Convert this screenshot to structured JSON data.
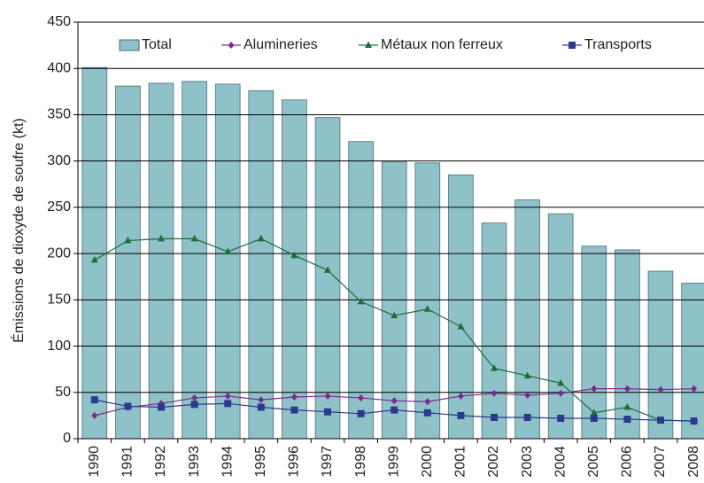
{
  "chart_data": {
    "type": "bar_line",
    "y_label": "Émissions de dioxyde de soufre (kt)",
    "categories": [
      "1990",
      "1991",
      "1992",
      "1993",
      "1994",
      "1995",
      "1996",
      "1997",
      "1998",
      "1999",
      "2000",
      "2001",
      "2002",
      "2003",
      "2004",
      "2005",
      "2006",
      "2007",
      "2008"
    ],
    "series": [
      {
        "name": "Total",
        "type": "bar",
        "color": "#8fc1c8",
        "values": [
          401,
          381,
          384,
          386,
          383,
          376,
          366,
          347,
          321,
          299,
          298,
          285,
          233,
          258,
          243,
          208,
          204,
          181,
          168
        ]
      },
      {
        "name": "Alumineries",
        "type": "line",
        "marker": "diamond",
        "color": "#7b2c8c",
        "values": [
          25,
          34,
          38,
          44,
          46,
          42,
          45,
          46,
          44,
          41,
          40,
          46,
          49,
          47,
          49,
          54,
          54,
          53,
          54
        ]
      },
      {
        "name": "Métaux non ferreux",
        "type": "line",
        "marker": "triangle",
        "color": "#1e6e3a",
        "values": [
          193,
          214,
          216,
          216,
          202,
          216,
          198,
          182,
          148,
          133,
          140,
          121,
          76,
          68,
          60,
          28,
          34,
          20,
          19
        ]
      },
      {
        "name": "Transports",
        "type": "line",
        "marker": "square",
        "color": "#2a3a8c",
        "values": [
          42,
          35,
          34,
          37,
          38,
          34,
          31,
          29,
          27,
          31,
          28,
          25,
          23,
          23,
          22,
          22,
          21,
          20,
          19
        ]
      }
    ],
    "ylim": [
      0,
      450
    ],
    "yticks": [
      0,
      50,
      100,
      150,
      200,
      250,
      300,
      350,
      400,
      450
    ],
    "grid": true,
    "legend": "top"
  }
}
